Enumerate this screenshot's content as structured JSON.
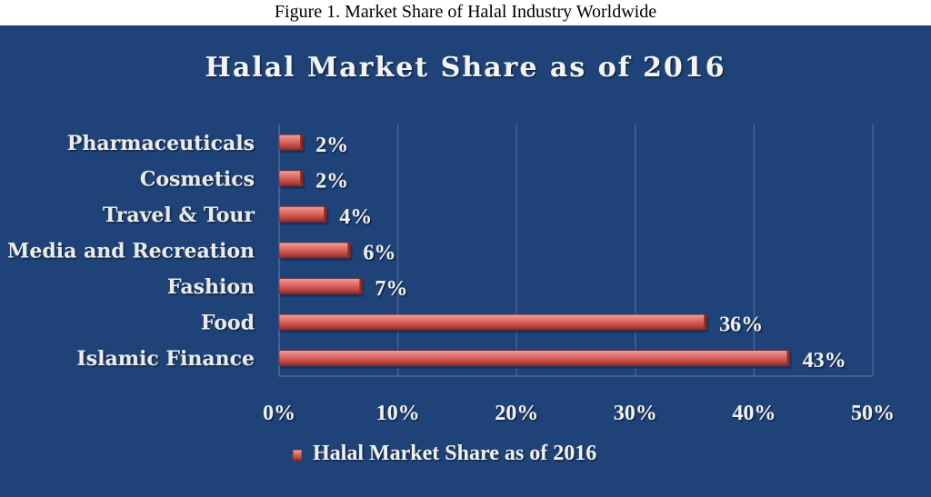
{
  "figure_caption": "Figure 1. Market Share of Halal Industry Worldwide",
  "colors": {
    "background": "#1f4379",
    "bar": "#c9504d",
    "bar_highlight": "#f2a19c",
    "text": "#f0f0f0",
    "grid": "#4a6a9c"
  },
  "chart_data": {
    "type": "bar",
    "orientation": "horizontal",
    "title": "Halal Market Share as of 2016",
    "categories": [
      "Pharmaceuticals",
      "Cosmetics",
      "Travel & Tour",
      "Media and Recreation",
      "Fashion",
      "Food",
      "Islamic Finance"
    ],
    "series": [
      {
        "name": "Halal Market Share as of 2016",
        "values": [
          2,
          2,
          4,
          6,
          7,
          36,
          43
        ],
        "labels": [
          "2%",
          "2%",
          "4%",
          "6%",
          "7%",
          "36%",
          "43%"
        ]
      }
    ],
    "xlim": [
      0,
      50
    ],
    "xticks": [
      "0%",
      "10%",
      "20%",
      "30%",
      "40%",
      "50%"
    ],
    "xlabel": "",
    "ylabel": "",
    "grid": true,
    "legend_position": "bottom"
  }
}
